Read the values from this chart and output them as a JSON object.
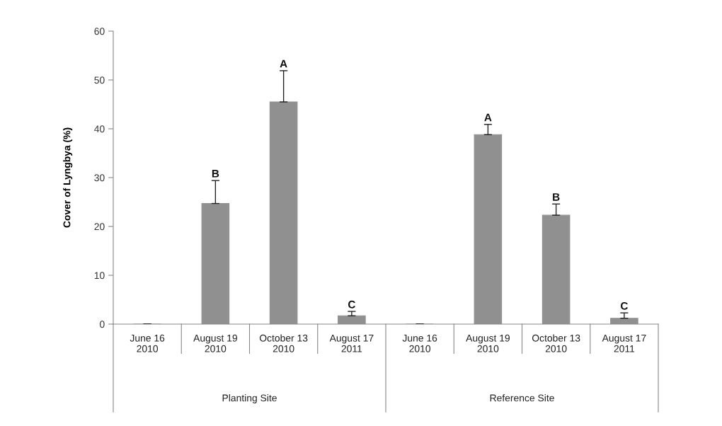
{
  "chart_data": {
    "type": "bar",
    "ylabel": "Cover of Lyngbya (%)",
    "categories": [
      "June 16\n2010",
      "August 19\n2010",
      "October 13\n2010",
      "August 17\n2011",
      "June 16\n2010",
      "August 19\n2010",
      "October 13\n2010",
      "August 17\n2011"
    ],
    "values": [
      0,
      24.7,
      45.5,
      1.7,
      0,
      38.8,
      22.3,
      1.2
    ],
    "errors": [
      null,
      [
        24.7,
        29.4
      ],
      [
        45.5,
        51.9
      ],
      [
        1.7,
        2.6
      ],
      null,
      [
        38.8,
        40.9
      ],
      [
        22.3,
        24.6
      ],
      [
        1.2,
        2.3
      ]
    ],
    "value_labels": [
      null,
      "B",
      "A",
      "C",
      null,
      "A",
      "B",
      "C"
    ],
    "color": "#909090",
    "annotations": [
      "Planting Site",
      "Reference Site"
    ],
    "ylim": [
      0,
      60
    ],
    "yticks": [
      0,
      10,
      20,
      30,
      40,
      50,
      60
    ],
    "grid": false,
    "legend": false
  }
}
